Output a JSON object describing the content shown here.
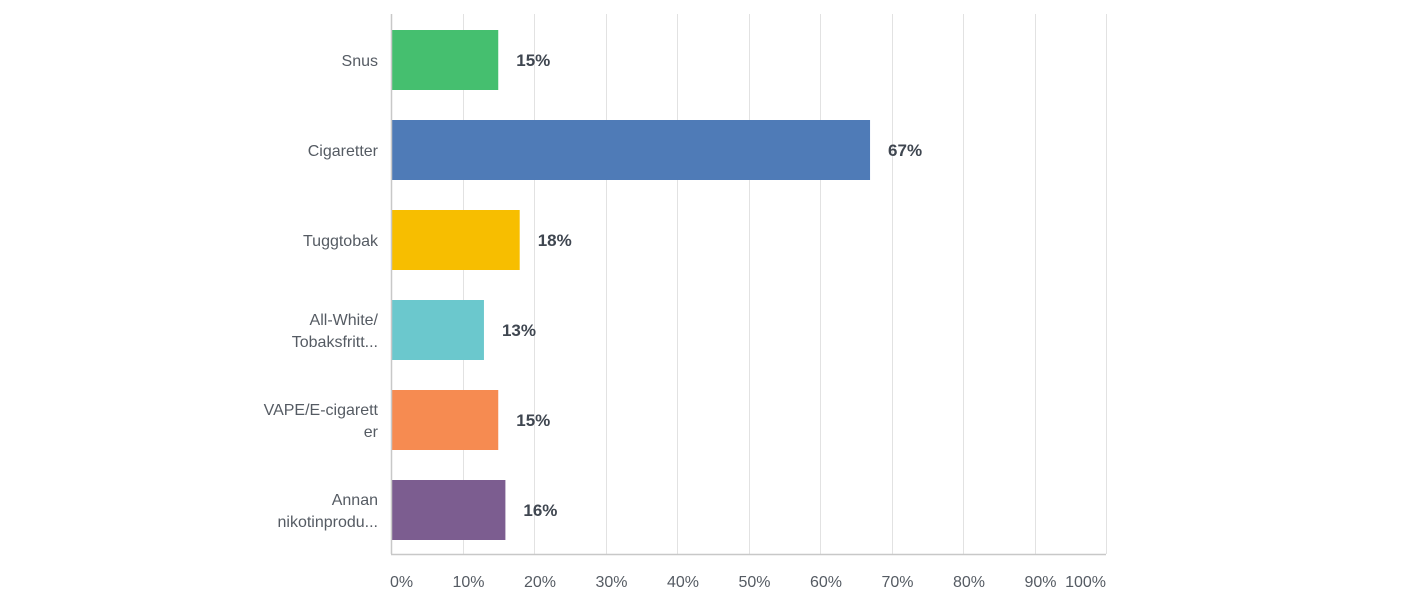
{
  "chart_data": {
    "type": "bar",
    "orientation": "horizontal",
    "categories": [
      [
        "Snus"
      ],
      [
        "Cigaretter"
      ],
      [
        "Tuggtobak"
      ],
      [
        "All-White/",
        "Tobaksfritt..."
      ],
      [
        "VAPE/E-cigarett",
        "er"
      ],
      [
        "Annan",
        "nikotinprodu..."
      ]
    ],
    "values": [
      15,
      67,
      18,
      13,
      15,
      16
    ],
    "value_labels": [
      "15%",
      "67%",
      "18%",
      "13%",
      "15%",
      "16%"
    ],
    "colors": [
      "#45bf6f",
      "#4f7bb7",
      "#f7be00",
      "#6bc8cd",
      "#f68b51",
      "#7c5d90"
    ],
    "xlim": [
      0,
      100
    ],
    "xticks": [
      0,
      10,
      20,
      30,
      40,
      50,
      60,
      70,
      80,
      90,
      100
    ],
    "xtick_labels": [
      "0%",
      "10%",
      "20%",
      "30%",
      "40%",
      "50%",
      "60%",
      "70%",
      "80%",
      "90%",
      "100%"
    ],
    "grid": true,
    "legend": "none"
  }
}
